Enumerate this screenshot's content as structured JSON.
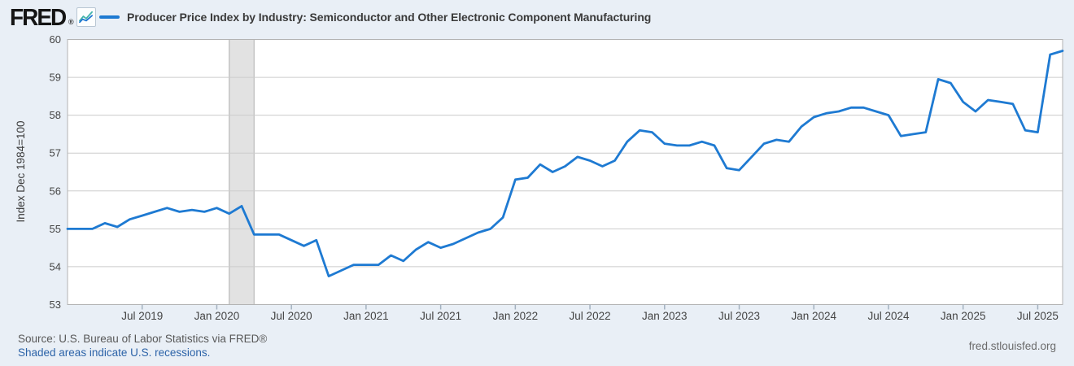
{
  "header": {
    "logo_text": "FRED",
    "registered_mark": "®",
    "logo_icon": "sparkline-chart-icon",
    "legend_label": "Producer Price Index by Industry: Semiconductor and Other Electronic Component Manufacturing"
  },
  "footer": {
    "source_text": "Source: U.S. Bureau of Labor Statistics via FRED®",
    "recession_note": "Shaded areas indicate U.S. recessions.",
    "site_link": "fred.stlouisfed.org"
  },
  "colors": {
    "page_background": "#e9eff6",
    "plot_background": "#ffffff",
    "line": "#1e7ad2",
    "gridline": "#cccccc",
    "plot_border": "#b3b3b3",
    "recession_band": "#e2e2e2",
    "recession_band_edge": "#c4c4c4",
    "axis_text": "#444444",
    "axis_title_text": "#3c3c3c",
    "tick_mark": "#a3b1bf"
  },
  "chart_data": {
    "type": "line",
    "title": "Producer Price Index by Industry: Semiconductor and Other Electronic Component Manufacturing",
    "ylabel": "Index Dec 1984=100",
    "frequency": "monthly",
    "start_label": "Jan 2019",
    "end_label": "Sep 2025",
    "ylim": [
      53,
      60
    ],
    "grid": true,
    "legend_position": "top",
    "y_ticks": [
      53,
      54,
      55,
      56,
      57,
      58,
      59,
      60
    ],
    "x_ticks": [
      {
        "label": "Jul 2019",
        "month_index": 6
      },
      {
        "label": "Jan 2020",
        "month_index": 12
      },
      {
        "label": "Jul 2020",
        "month_index": 18
      },
      {
        "label": "Jan 2021",
        "month_index": 24
      },
      {
        "label": "Jul 2021",
        "month_index": 30
      },
      {
        "label": "Jan 2022",
        "month_index": 36
      },
      {
        "label": "Jul 2022",
        "month_index": 42
      },
      {
        "label": "Jan 2023",
        "month_index": 48
      },
      {
        "label": "Jul 2023",
        "month_index": 54
      },
      {
        "label": "Jan 2024",
        "month_index": 60
      },
      {
        "label": "Jul 2024",
        "month_index": 66
      },
      {
        "label": "Jan 2025",
        "month_index": 72
      },
      {
        "label": "Jul 2025",
        "month_index": 78
      }
    ],
    "recession_bands": [
      {
        "start_month_index": 13,
        "end_month_index": 15,
        "label": "COVID-19 recession Feb–Apr 2020"
      }
    ],
    "values": [
      55.0,
      55.0,
      55.0,
      55.15,
      55.05,
      55.25,
      55.35,
      55.45,
      55.55,
      55.45,
      55.5,
      55.45,
      55.55,
      55.4,
      55.6,
      54.85,
      54.85,
      54.85,
      54.7,
      54.55,
      54.7,
      53.75,
      53.9,
      54.05,
      54.05,
      54.05,
      54.3,
      54.15,
      54.45,
      54.65,
      54.5,
      54.6,
      54.75,
      54.9,
      55.0,
      55.3,
      56.3,
      56.35,
      56.7,
      56.5,
      56.65,
      56.9,
      56.8,
      56.65,
      56.8,
      57.3,
      57.6,
      57.55,
      57.25,
      57.2,
      57.2,
      57.3,
      57.2,
      56.6,
      56.55,
      56.9,
      57.25,
      57.35,
      57.3,
      57.7,
      57.95,
      58.05,
      58.1,
      58.2,
      58.2,
      58.1,
      58.0,
      57.45,
      57.5,
      57.55,
      58.95,
      58.85,
      58.35,
      58.1,
      58.4,
      58.35,
      58.3,
      57.6,
      57.55,
      59.6,
      59.7
    ]
  }
}
